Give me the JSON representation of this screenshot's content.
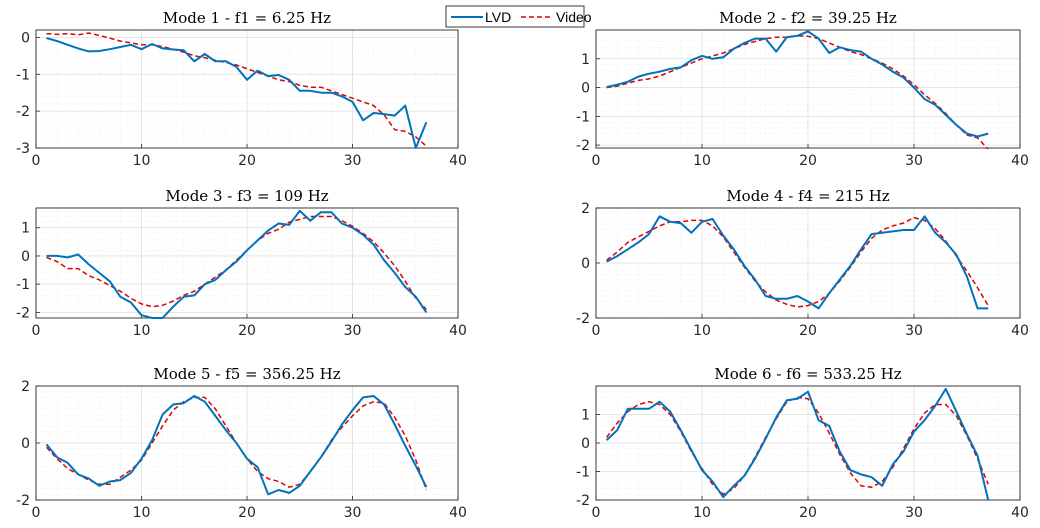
{
  "legend": {
    "entries": [
      {
        "label": "LVD",
        "color": "#0072bd",
        "style": "solid"
      },
      {
        "label": "Video",
        "color": "#e00000",
        "style": "dashed"
      }
    ],
    "placement": "top-center"
  },
  "chart_data": [
    {
      "type": "line",
      "title": "Mode 1 - f1 = 6.25 Hz",
      "xlim": [
        0,
        40
      ],
      "ylim": [
        -3,
        0.2
      ],
      "xticks": [
        0,
        10,
        20,
        30,
        40
      ],
      "yticks": [
        0,
        -1,
        -2,
        -3
      ],
      "grid": true,
      "series": [
        {
          "name": "LVD",
          "x": [
            1,
            2,
            3,
            4,
            5,
            6,
            7,
            8,
            9,
            10,
            11,
            12,
            13,
            14,
            15,
            16,
            17,
            18,
            19,
            20,
            21,
            22,
            23,
            24,
            25,
            26,
            27,
            28,
            29,
            30,
            31,
            32,
            33,
            34,
            35,
            36,
            37
          ],
          "y": [
            -0.02,
            -0.1,
            -0.2,
            -0.3,
            -0.38,
            -0.37,
            -0.32,
            -0.26,
            -0.2,
            -0.32,
            -0.18,
            -0.3,
            -0.33,
            -0.35,
            -0.65,
            -0.45,
            -0.65,
            -0.65,
            -0.8,
            -1.15,
            -0.9,
            -1.05,
            -1.02,
            -1.15,
            -1.45,
            -1.45,
            -1.5,
            -1.5,
            -1.6,
            -1.75,
            -2.25,
            -2.05,
            -2.08,
            -2.12,
            -1.85,
            -3.0,
            -2.3
          ]
        },
        {
          "name": "Video",
          "x": [
            1,
            2,
            3,
            4,
            5,
            6,
            7,
            8,
            9,
            10,
            11,
            12,
            13,
            14,
            15,
            16,
            17,
            18,
            19,
            20,
            21,
            22,
            23,
            24,
            25,
            26,
            27,
            28,
            29,
            30,
            31,
            32,
            33,
            34,
            35,
            36,
            37
          ],
          "y": [
            0.1,
            0.08,
            0.1,
            0.07,
            0.12,
            0.05,
            -0.02,
            -0.1,
            -0.15,
            -0.2,
            -0.2,
            -0.25,
            -0.32,
            -0.4,
            -0.5,
            -0.55,
            -0.62,
            -0.68,
            -0.75,
            -0.85,
            -0.95,
            -1.05,
            -1.15,
            -1.2,
            -1.3,
            -1.35,
            -1.35,
            -1.45,
            -1.55,
            -1.65,
            -1.75,
            -1.85,
            -2.1,
            -2.5,
            -2.55,
            -2.7,
            -2.95
          ]
        }
      ]
    },
    {
      "type": "line",
      "title": "Mode 2 - f2 = 39.25 Hz",
      "xlim": [
        0,
        40
      ],
      "ylim": [
        -2.1,
        2
      ],
      "xticks": [
        0,
        10,
        20,
        30,
        40
      ],
      "yticks": [
        1,
        0,
        -1,
        -2
      ],
      "grid": true,
      "series": [
        {
          "name": "LVD",
          "x": [
            1,
            2,
            3,
            4,
            5,
            6,
            7,
            8,
            9,
            10,
            11,
            12,
            13,
            14,
            15,
            16,
            17,
            18,
            19,
            20,
            21,
            22,
            23,
            24,
            25,
            26,
            27,
            28,
            29,
            30,
            31,
            32,
            33,
            34,
            35,
            36,
            37
          ],
          "y": [
            0.02,
            0.1,
            0.2,
            0.38,
            0.48,
            0.55,
            0.65,
            0.7,
            0.95,
            1.1,
            1.0,
            1.05,
            1.35,
            1.55,
            1.7,
            1.7,
            1.25,
            1.75,
            1.8,
            1.95,
            1.7,
            1.2,
            1.4,
            1.3,
            1.25,
            1.0,
            0.8,
            0.55,
            0.35,
            0.0,
            -0.4,
            -0.6,
            -0.95,
            -1.3,
            -1.6,
            -1.7,
            -1.6
          ]
        },
        {
          "name": "Video",
          "x": [
            1,
            2,
            3,
            4,
            5,
            6,
            7,
            8,
            9,
            10,
            11,
            12,
            13,
            14,
            15,
            16,
            17,
            18,
            19,
            20,
            21,
            22,
            23,
            24,
            25,
            26,
            27,
            28,
            29,
            30,
            31,
            32,
            33,
            34,
            35,
            36,
            37
          ],
          "y": [
            0.0,
            0.05,
            0.15,
            0.25,
            0.3,
            0.4,
            0.55,
            0.7,
            0.85,
            1.0,
            1.1,
            1.2,
            1.35,
            1.5,
            1.6,
            1.7,
            1.75,
            1.75,
            1.8,
            1.78,
            1.7,
            1.55,
            1.4,
            1.25,
            1.15,
            1.0,
            0.85,
            0.65,
            0.4,
            0.1,
            -0.25,
            -0.55,
            -0.9,
            -1.3,
            -1.65,
            -1.75,
            -2.15
          ]
        }
      ]
    },
    {
      "type": "line",
      "title": "Mode 3 - f3 = 109 Hz",
      "xlim": [
        0,
        40
      ],
      "ylim": [
        -2.2,
        1.7
      ],
      "xticks": [
        0,
        10,
        20,
        30,
        40
      ],
      "yticks": [
        1,
        0,
        -1,
        -2
      ],
      "grid": true,
      "series": [
        {
          "name": "LVD",
          "x": [
            1,
            2,
            3,
            4,
            5,
            6,
            7,
            8,
            9,
            10,
            11,
            12,
            13,
            14,
            15,
            16,
            17,
            18,
            19,
            20,
            21,
            22,
            23,
            24,
            25,
            26,
            27,
            28,
            29,
            30,
            31,
            32,
            33,
            34,
            35,
            36,
            37
          ],
          "y": [
            0.0,
            0.0,
            -0.05,
            0.05,
            -0.3,
            -0.6,
            -0.9,
            -1.45,
            -1.65,
            -2.1,
            -2.2,
            -2.2,
            -1.8,
            -1.45,
            -1.4,
            -1.0,
            -0.85,
            -0.5,
            -0.2,
            0.2,
            0.55,
            0.9,
            1.15,
            1.1,
            1.6,
            1.25,
            1.55,
            1.55,
            1.15,
            1.0,
            0.75,
            0.4,
            -0.15,
            -0.6,
            -1.1,
            -1.45,
            -2.0
          ]
        },
        {
          "name": "Video",
          "x": [
            1,
            2,
            3,
            4,
            5,
            6,
            7,
            8,
            9,
            10,
            11,
            12,
            13,
            14,
            15,
            16,
            17,
            18,
            19,
            20,
            21,
            22,
            23,
            24,
            25,
            26,
            27,
            28,
            29,
            30,
            31,
            32,
            33,
            34,
            35,
            36,
            37
          ],
          "y": [
            -0.05,
            -0.2,
            -0.45,
            -0.45,
            -0.7,
            -0.85,
            -1.05,
            -1.25,
            -1.5,
            -1.7,
            -1.8,
            -1.75,
            -1.6,
            -1.4,
            -1.25,
            -1.0,
            -0.75,
            -0.5,
            -0.15,
            0.2,
            0.55,
            0.8,
            0.95,
            1.2,
            1.3,
            1.4,
            1.4,
            1.4,
            1.25,
            1.05,
            0.8,
            0.5,
            0.1,
            -0.35,
            -0.9,
            -1.5,
            -1.9
          ]
        }
      ]
    },
    {
      "type": "line",
      "title": "Mode 4 - f4 = 215 Hz",
      "xlim": [
        0,
        40
      ],
      "ylim": [
        -2,
        2
      ],
      "xticks": [
        0,
        10,
        20,
        30,
        40
      ],
      "yticks": [
        2,
        0,
        -2
      ],
      "grid": true,
      "series": [
        {
          "name": "LVD",
          "x": [
            1,
            2,
            3,
            4,
            5,
            6,
            7,
            8,
            9,
            10,
            11,
            12,
            13,
            14,
            15,
            16,
            17,
            18,
            19,
            20,
            21,
            22,
            23,
            24,
            25,
            26,
            27,
            28,
            29,
            30,
            31,
            32,
            33,
            34,
            35,
            36,
            37
          ],
          "y": [
            0.05,
            0.25,
            0.5,
            0.75,
            1.05,
            1.7,
            1.5,
            1.45,
            1.1,
            1.5,
            1.6,
            1.0,
            0.5,
            -0.1,
            -0.6,
            -1.2,
            -1.3,
            -1.3,
            -1.2,
            -1.4,
            -1.65,
            -1.1,
            -0.6,
            -0.1,
            0.5,
            1.05,
            1.1,
            1.15,
            1.2,
            1.2,
            1.7,
            1.1,
            0.75,
            0.3,
            -0.5,
            -1.65,
            -1.65
          ]
        },
        {
          "name": "Video",
          "x": [
            1,
            2,
            3,
            4,
            5,
            6,
            7,
            8,
            9,
            10,
            11,
            12,
            13,
            14,
            15,
            16,
            17,
            18,
            19,
            20,
            21,
            22,
            23,
            24,
            25,
            26,
            27,
            28,
            29,
            30,
            31,
            32,
            33,
            34,
            35,
            36,
            37
          ],
          "y": [
            0.1,
            0.4,
            0.75,
            0.95,
            1.15,
            1.35,
            1.5,
            1.5,
            1.55,
            1.55,
            1.35,
            0.95,
            0.4,
            -0.15,
            -0.65,
            -1.05,
            -1.35,
            -1.5,
            -1.6,
            -1.55,
            -1.4,
            -1.1,
            -0.65,
            -0.15,
            0.4,
            0.9,
            1.2,
            1.35,
            1.45,
            1.65,
            1.55,
            1.25,
            0.8,
            0.25,
            -0.3,
            -0.9,
            -1.55
          ]
        }
      ]
    },
    {
      "type": "line",
      "title": "Mode 5 - f5 = 356.25 Hz",
      "xlim": [
        0,
        40
      ],
      "ylim": [
        -2,
        2
      ],
      "xticks": [
        0,
        10,
        20,
        30,
        40
      ],
      "yticks": [
        2,
        0,
        -2
      ],
      "grid": true,
      "series": [
        {
          "name": "LVD",
          "x": [
            1,
            2,
            3,
            4,
            5,
            6,
            7,
            8,
            9,
            10,
            11,
            12,
            13,
            14,
            15,
            16,
            17,
            18,
            19,
            20,
            21,
            22,
            23,
            24,
            25,
            26,
            27,
            28,
            29,
            30,
            31,
            32,
            33,
            34,
            35,
            36,
            37
          ],
          "y": [
            -0.05,
            -0.5,
            -0.7,
            -1.1,
            -1.25,
            -1.5,
            -1.35,
            -1.3,
            -1.05,
            -0.55,
            0.1,
            1.0,
            1.35,
            1.4,
            1.65,
            1.45,
            0.95,
            0.45,
            0.0,
            -0.55,
            -0.85,
            -1.8,
            -1.65,
            -1.75,
            -1.5,
            -1.0,
            -0.5,
            0.05,
            0.65,
            1.15,
            1.6,
            1.65,
            1.35,
            0.65,
            -0.1,
            -0.8,
            -1.55
          ]
        },
        {
          "name": "Video",
          "x": [
            1,
            2,
            3,
            4,
            5,
            6,
            7,
            8,
            9,
            10,
            11,
            12,
            13,
            14,
            15,
            16,
            17,
            18,
            19,
            20,
            21,
            22,
            23,
            24,
            25,
            26,
            27,
            28,
            29,
            30,
            31,
            32,
            33,
            34,
            35,
            36,
            37
          ],
          "y": [
            -0.15,
            -0.55,
            -0.9,
            -1.1,
            -1.3,
            -1.45,
            -1.45,
            -1.2,
            -0.95,
            -0.6,
            0.0,
            0.6,
            1.15,
            1.45,
            1.6,
            1.6,
            1.2,
            0.6,
            0.0,
            -0.55,
            -1.0,
            -1.25,
            -1.35,
            -1.55,
            -1.45,
            -1.0,
            -0.5,
            0.1,
            0.55,
            0.95,
            1.3,
            1.45,
            1.4,
            0.9,
            0.25,
            -0.6,
            -1.65
          ]
        }
      ]
    },
    {
      "type": "line",
      "title": "Mode 6 - f6 = 533.25 Hz",
      "xlim": [
        0,
        40
      ],
      "ylim": [
        -2,
        2
      ],
      "xticks": [
        0,
        10,
        20,
        30,
        40
      ],
      "yticks": [
        1,
        0,
        -1,
        -2
      ],
      "grid": true,
      "series": [
        {
          "name": "LVD",
          "x": [
            1,
            2,
            3,
            4,
            5,
            6,
            7,
            8,
            9,
            10,
            11,
            12,
            13,
            14,
            15,
            16,
            17,
            18,
            19,
            20,
            21,
            22,
            23,
            24,
            25,
            26,
            27,
            28,
            29,
            30,
            31,
            32,
            33,
            34,
            35,
            36,
            37
          ],
          "y": [
            0.1,
            0.45,
            1.2,
            1.2,
            1.2,
            1.45,
            1.1,
            0.45,
            -0.25,
            -0.95,
            -1.35,
            -1.9,
            -1.5,
            -1.15,
            -0.55,
            0.15,
            0.9,
            1.5,
            1.55,
            1.8,
            0.8,
            0.6,
            -0.3,
            -0.95,
            -1.1,
            -1.2,
            -1.5,
            -0.75,
            -0.3,
            0.4,
            0.8,
            1.3,
            1.9,
            1.1,
            0.3,
            -0.45,
            -2.0
          ]
        },
        {
          "name": "Video",
          "x": [
            1,
            2,
            3,
            4,
            5,
            6,
            7,
            8,
            9,
            10,
            11,
            12,
            13,
            14,
            15,
            16,
            17,
            18,
            19,
            20,
            21,
            22,
            23,
            24,
            25,
            26,
            27,
            28,
            29,
            30,
            31,
            32,
            33,
            34,
            35,
            36,
            37
          ],
          "y": [
            0.2,
            0.7,
            1.1,
            1.35,
            1.45,
            1.35,
            1.0,
            0.4,
            -0.3,
            -0.9,
            -1.45,
            -1.8,
            -1.6,
            -1.15,
            -0.5,
            0.2,
            0.85,
            1.45,
            1.6,
            1.55,
            1.05,
            0.35,
            -0.4,
            -1.05,
            -1.5,
            -1.55,
            -1.35,
            -0.85,
            -0.2,
            0.5,
            1.05,
            1.35,
            1.35,
            0.95,
            0.25,
            -0.55,
            -1.45
          ]
        }
      ]
    }
  ]
}
